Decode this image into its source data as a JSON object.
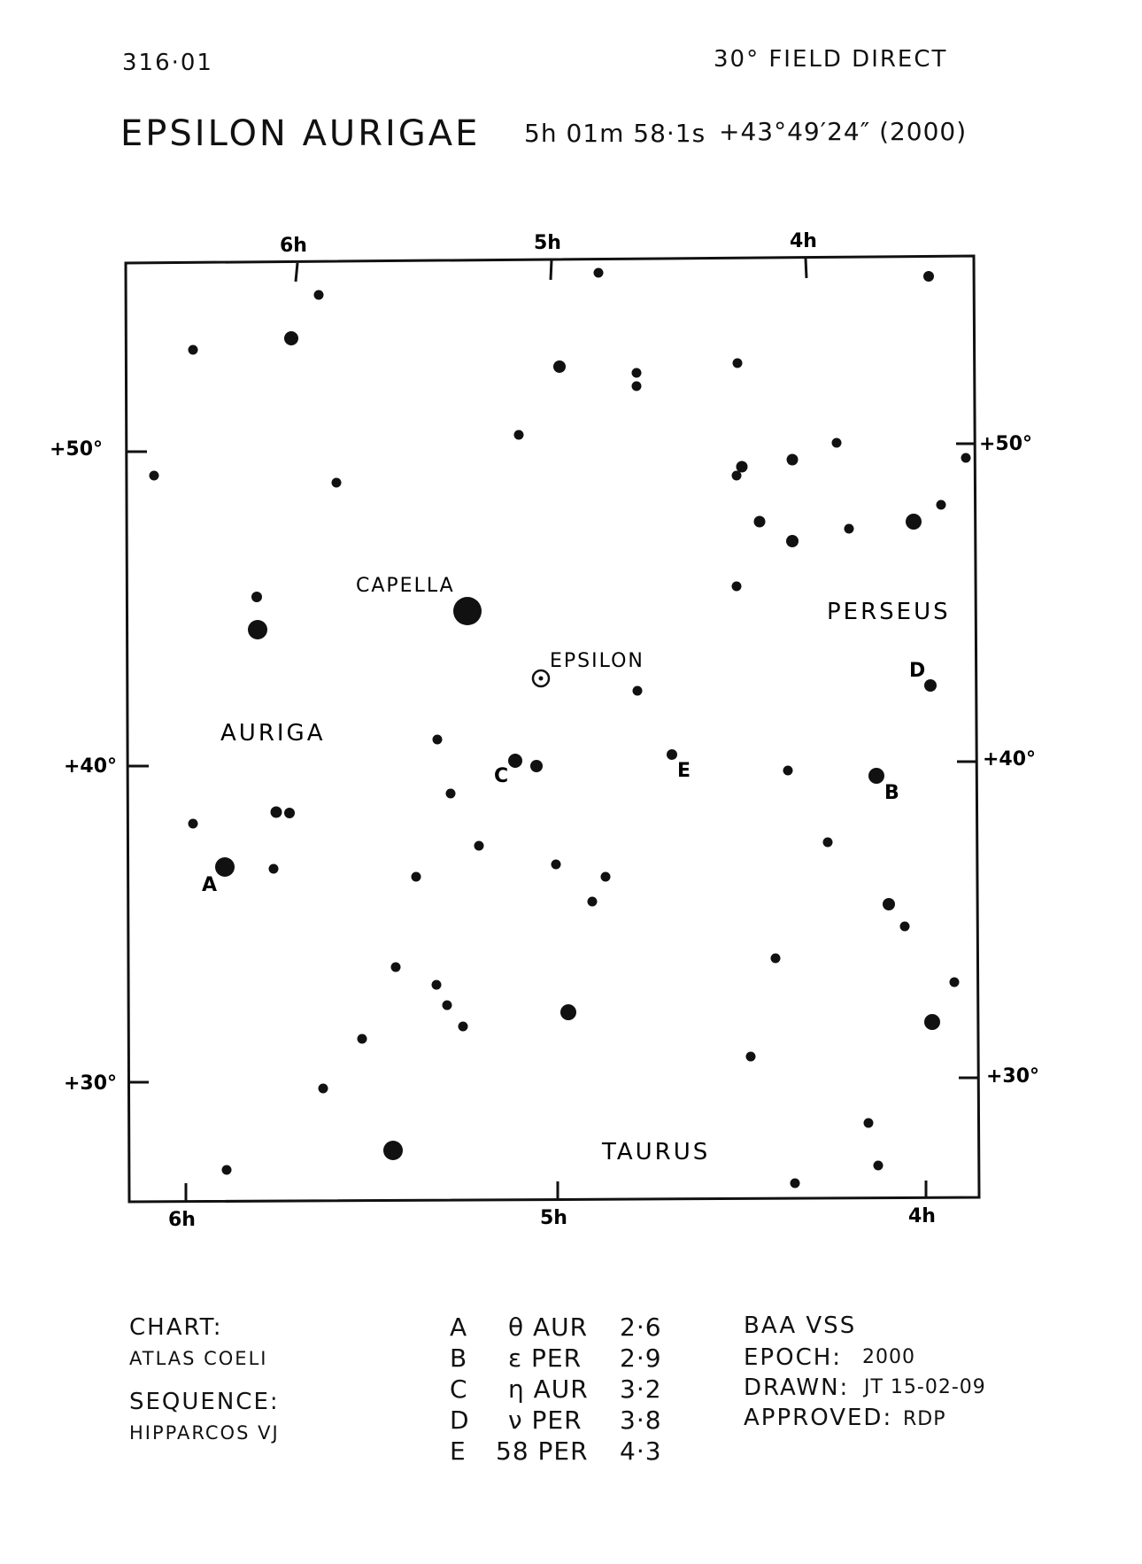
{
  "header": {
    "chart_id": "316·01",
    "field": "30° FIELD DIRECT",
    "star_name": "EPSILON AURIGAE",
    "ra": "5h 01m 58·1s",
    "dec_epoch": "+43°49′24″ (2000)"
  },
  "map": {
    "top_ra_labels": [
      {
        "text": "6h",
        "ra": 6.0
      },
      {
        "text": "5h",
        "ra": 5.0
      },
      {
        "text": "4h",
        "ra": 4.0
      }
    ],
    "bottom_ra_labels": [
      {
        "text": "6h",
        "ra": 6.0
      },
      {
        "text": "5h",
        "ra": 5.0
      },
      {
        "text": "4h",
        "ra": 4.0
      }
    ],
    "left_dec_labels": [
      {
        "text": "+50°",
        "dec": 50
      },
      {
        "text": "+40°",
        "dec": 40
      },
      {
        "text": "+30°",
        "dec": 30
      }
    ],
    "right_dec_labels": [
      {
        "text": "+50°",
        "dec": 50
      },
      {
        "text": "+40°",
        "dec": 40
      },
      {
        "text": "+30°",
        "dec": 30
      }
    ],
    "constellations": [
      "AURIGA",
      "PERSEUS",
      "TAURUS"
    ],
    "named_stars": [
      "CAPELLA",
      "EPSILON"
    ],
    "comparison_labels": [
      "A",
      "B",
      "C",
      "D",
      "E"
    ]
  },
  "footer": {
    "chart_label": "CHART:",
    "chart_value": "ATLAS COELI",
    "sequence_label": "SEQUENCE:",
    "sequence_value": "HIPPARCOS VJ",
    "sequence": [
      {
        "letter": "A",
        "star": "θ AUR",
        "mag": "2·6"
      },
      {
        "letter": "B",
        "star": "ε PER",
        "mag": "2·9"
      },
      {
        "letter": "C",
        "star": "η AUR",
        "mag": "3·2"
      },
      {
        "letter": "D",
        "star": "ν PER",
        "mag": "3·8"
      },
      {
        "letter": "E",
        "star": "58 PER",
        "mag": "4·3"
      }
    ],
    "org": "BAA VSS",
    "epoch_label": "EPOCH:",
    "epoch_value": "2000",
    "drawn_label": "DRAWN:",
    "drawn_value": "JT 15-02-09",
    "approved_label": "APPROVED:",
    "approved_value": "RDP"
  }
}
